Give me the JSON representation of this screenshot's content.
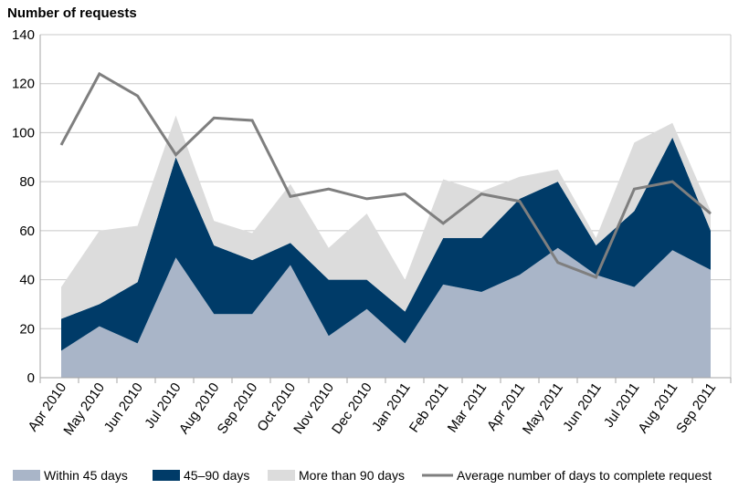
{
  "chart_data": {
    "type": "area",
    "ylabel": "Number of requests",
    "ylim": [
      0,
      140
    ],
    "yticks": [
      0,
      20,
      40,
      60,
      80,
      100,
      120,
      140
    ],
    "categories": [
      "Apr 2010",
      "May 2010",
      "Jun 2010",
      "Jul 2010",
      "Aug 2010",
      "Sep 2010",
      "Oct 2010",
      "Nov 2010",
      "Dec 2010",
      "Jan 2011",
      "Feb 2011",
      "Mar 2011",
      "Apr 2011",
      "May 2011",
      "Jun 2011",
      "Jul 2011",
      "Aug 2011",
      "Sep 2011"
    ],
    "stacked": true,
    "series": [
      {
        "name": "Within 45 days",
        "kind": "area",
        "color": "#a9b5c8",
        "values": [
          11,
          21,
          14,
          49,
          26,
          26,
          46,
          17,
          28,
          14,
          38,
          35,
          42,
          53,
          42,
          37,
          52,
          44
        ]
      },
      {
        "name": "45–90 days",
        "kind": "area",
        "color": "#003b68",
        "values": [
          13,
          9,
          25,
          41,
          28,
          22,
          9,
          23,
          12,
          13,
          19,
          22,
          31,
          27,
          12,
          31,
          46,
          16
        ]
      },
      {
        "name": "More than 90 days",
        "kind": "area",
        "color": "#dcdcdc",
        "values": [
          13,
          30,
          23,
          17,
          10,
          11,
          24,
          13,
          27,
          13,
          24,
          19,
          9,
          5,
          3,
          28,
          6,
          8
        ]
      },
      {
        "name": "Average number of days to complete request",
        "kind": "line",
        "color": "#7f7f7f",
        "values": [
          95,
          124,
          115,
          91,
          106,
          105,
          74,
          77,
          73,
          75,
          63,
          75,
          72,
          47,
          41,
          77,
          80,
          67
        ]
      }
    ],
    "grid": true,
    "legend": "bottom"
  }
}
